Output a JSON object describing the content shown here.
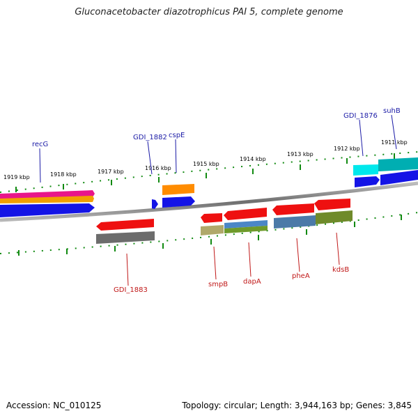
{
  "title": "Gluconacetobacter diazotrophicus PAI 5, complete genome",
  "accession_text": "Accession: NC_010125",
  "topology_text": "Topology: circular; Length: 3,944,163 bp; Genes: 3,845",
  "ticks": {
    "t1919": "1919 kbp",
    "t1918": "1918 kbp",
    "t1917": "1917 kbp",
    "t1916": "1916 kbp",
    "t1915": "1915 kbp",
    "t1914": "1914 kbp",
    "t1913": "1913 kbp",
    "t1912": "1912 kbp",
    "t1911": "1911 kbp"
  },
  "labels": {
    "recG": "recG",
    "gdi1882": "GDI_1882",
    "cspE": "cspE",
    "gdi1876": "GDI_1876",
    "suhB": "suhB",
    "gdi1883": "GDI_1883",
    "smpB": "smpB",
    "dapA": "dapA",
    "pheA": "pheA",
    "kdsB": "kdsB"
  },
  "colors": {
    "forward_label": "#1a1aa6",
    "reverse_label": "#c01818",
    "tick": "#118a11",
    "backbone": "#7a7a7a"
  }
}
